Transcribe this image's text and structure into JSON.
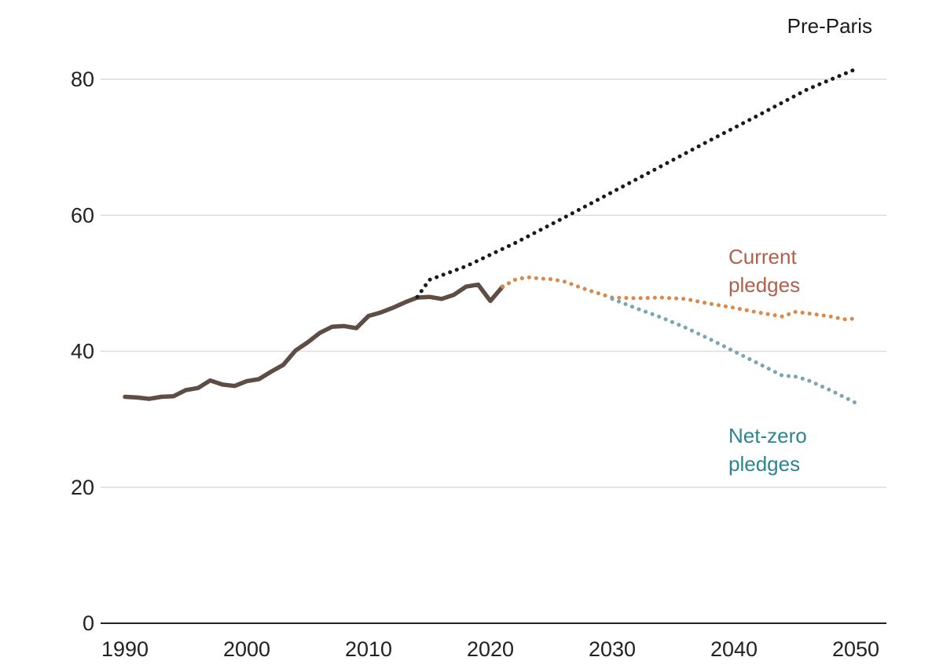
{
  "chart_data": {
    "type": "line",
    "title": "",
    "xlabel": "",
    "ylabel": "",
    "xlim": [
      1990,
      2050
    ],
    "ylim": [
      0,
      80
    ],
    "x_ticks": [
      "1990",
      "2000",
      "2010",
      "2020",
      "2030",
      "2040",
      "2050"
    ],
    "y_ticks": [
      "0",
      "20",
      "40",
      "60",
      "80"
    ],
    "grid": "horizontal",
    "legend": "inline labels at line ends",
    "series": [
      {
        "name": "",
        "style": "solid",
        "color": "#5e4d45",
        "x": [
          1990,
          1991,
          1992,
          1993,
          1994,
          1995,
          1996,
          1997,
          1998,
          1999,
          2000,
          2001,
          2002,
          2003,
          2004,
          2005,
          2006,
          2007,
          2008,
          2009,
          2010,
          2011,
          2012,
          2013,
          2014,
          2015,
          2016,
          2017,
          2018,
          2019,
          2020,
          2021
        ],
        "y": [
          33.3,
          33.2,
          33.0,
          33.3,
          33.4,
          34.3,
          34.6,
          35.7,
          35.1,
          34.9,
          35.6,
          35.9,
          37.0,
          38.0,
          40.1,
          41.3,
          42.7,
          43.6,
          43.7,
          43.4,
          45.2,
          45.7,
          46.4,
          47.2,
          47.9,
          48.0,
          47.7,
          48.3,
          49.5,
          49.8,
          47.4,
          49.5
        ]
      },
      {
        "name": "Pre-Paris",
        "style": "dotted",
        "color": "#1a1a1a",
        "x": [
          2014,
          2015,
          2018,
          2022,
          2026,
          2030,
          2034,
          2038,
          2042,
          2046,
          2050
        ],
        "y": [
          48.0,
          50.5,
          52.5,
          55.9,
          59.6,
          63.4,
          67.2,
          71.0,
          74.7,
          78.5,
          81.5
        ]
      },
      {
        "name": "Current\npledges",
        "style": "dotted",
        "color": "#d9894a",
        "x": [
          2021,
          2022,
          2023,
          2024,
          2025,
          2026,
          2028,
          2030,
          2032,
          2034,
          2036,
          2038,
          2040,
          2042,
          2044,
          2045,
          2046,
          2048,
          2049,
          2050
        ],
        "y": [
          49.5,
          50.5,
          50.9,
          50.7,
          50.6,
          50.3,
          49.0,
          47.9,
          47.8,
          47.9,
          47.7,
          47.0,
          46.4,
          45.7,
          45.1,
          45.8,
          45.6,
          45.1,
          44.7,
          44.8
        ]
      },
      {
        "name": "Net-zero\npledges",
        "style": "dotted",
        "color": "#7aa6b0",
        "x": [
          2030,
          2032,
          2034,
          2036,
          2038,
          2040,
          2042,
          2044,
          2045,
          2046,
          2048,
          2050
        ],
        "y": [
          47.7,
          46.3,
          45.0,
          43.5,
          41.8,
          40.0,
          38.2,
          36.4,
          36.3,
          35.8,
          34.2,
          32.4
        ]
      }
    ],
    "annotations": [
      {
        "text": "Pre-Paris",
        "color": "#1a1a1a"
      },
      {
        "text": "Current\npledges",
        "color": "#b0604a"
      },
      {
        "text": "Net-zero\npledges",
        "color": "#2a8591"
      }
    ]
  }
}
